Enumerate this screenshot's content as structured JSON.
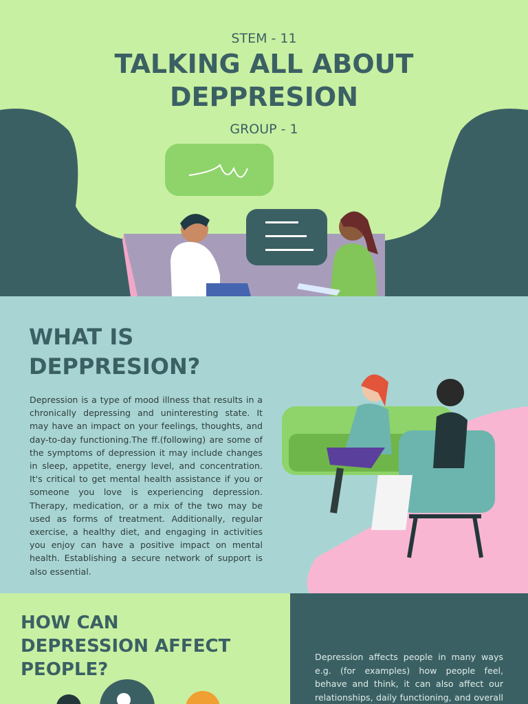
{
  "header": {
    "class_label": "STEM - 11",
    "title_line1": "TALKING ALL ABOUT",
    "title_line2": "DEPPRESION",
    "group_label": "GROUP - 1"
  },
  "what_is": {
    "heading_line1": "WHAT IS",
    "heading_line2": "DEPPRESION?",
    "body": " Depression is a type of mood illness that results in a chronically depressing and uninteresting state. It may have an impact on your feelings, thoughts, and day-to-day functioning.The ff.(following) are some of the symptoms of depression it may include changes in sleep, appetite, energy level, and concentration. It's critical to get mental health assistance if you or someone you love is experiencing depression. Therapy, medication, or a mix of the two may be used as forms of treatment. Additionally, regular exercise, a healthy diet, and engaging in activities you enjoy can have a positive impact on mental health. Establishing a secure network of support is also essential."
  },
  "affect": {
    "heading_line1": "HOW CAN",
    "heading_line2": "DEPRESSION AFFECT",
    "heading_line3": "PEOPLE?",
    "body": "Depression affects people in many ways e.g. (for examples) how people feel, behave and think, it can also affect our relationships, daily functioning, and overall health. It can lead to a"
  },
  "colors": {
    "light_green": "#c8f0a2",
    "dark_teal": "#3b6064",
    "aqua": "#a8d5d3",
    "pink": "#f9b6d2"
  }
}
